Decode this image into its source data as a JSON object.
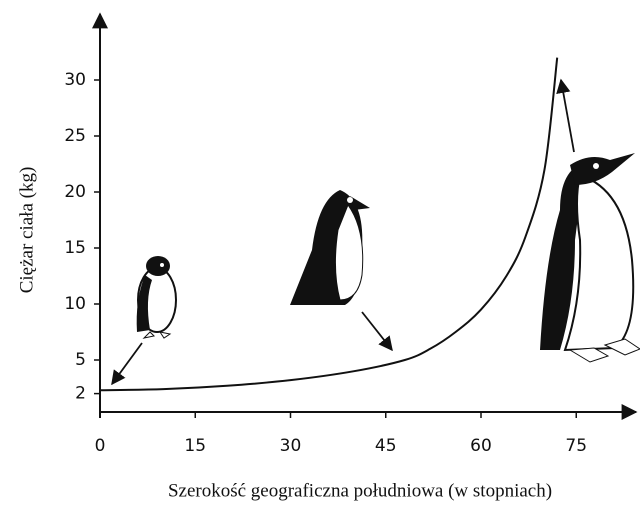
{
  "chart_data": {
    "type": "line",
    "x_label": "Szerokość geograficzna południowa (w stopniach)",
    "y_label": "Ciężar ciała (kg)",
    "x": [
      0,
      10,
      20,
      30,
      40,
      48,
      52,
      56,
      60,
      64,
      67,
      70,
      72
    ],
    "series": [
      {
        "color": "#111111",
        "values": [
          2.3,
          2.4,
          2.7,
          3.2,
          4,
          5,
          6,
          7.5,
          9.5,
          12.5,
          16,
          22,
          32
        ]
      }
    ],
    "xlim": [
      0,
      80
    ],
    "xticks": [
      0,
      15,
      30,
      45,
      60,
      75
    ],
    "ylim": [
      0,
      30
    ],
    "yticks": [
      2,
      5,
      10,
      15,
      20,
      25,
      30
    ],
    "grid": false
  }
}
